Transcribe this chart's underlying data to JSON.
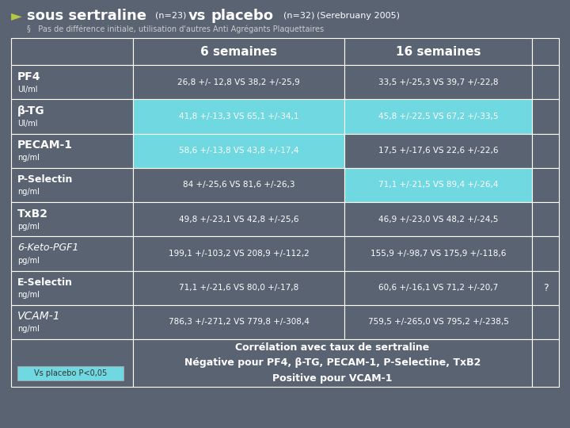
{
  "bg_color": "#5a6372",
  "arrow_color": "#b5c842",
  "text_color": "#ffffff",
  "highlight_color": "#70d8e0",
  "border_color": "#ffffff",
  "subtitle_color": "#cccccc",
  "vs_placebo_text_color": "#333333",
  "col_headers": [
    "6 semaines",
    "16 semaines"
  ],
  "rows": [
    {
      "label": "PF4",
      "sublabel": "UI/ml",
      "italic": false,
      "val_6": "26,8 +/- 12,8 VS 38,2 +/-25,9",
      "val_16": "33,5 +/-25,3 VS 39,7 +/-22,8",
      "highlight_6": false,
      "highlight_16": false,
      "extra": ""
    },
    {
      "label": "β-TG",
      "sublabel": "UI/ml",
      "italic": false,
      "val_6": "41,8 +/-13,3 VS 65,1 +/-34,1",
      "val_16": "45,8 +/-22,5 VS 67,2 +/-33,5",
      "highlight_6": true,
      "highlight_16": true,
      "extra": ""
    },
    {
      "label": "PECAM-1",
      "sublabel": "ng/ml",
      "italic": false,
      "val_6": "58,6 +/-13,8 VS 43,8 +/-17,4",
      "val_16": "17,5 +/-17,6 VS 22,6 +/-22,6",
      "highlight_6": true,
      "highlight_16": false,
      "extra": ""
    },
    {
      "label": "P-Selectin",
      "sublabel": "ng/ml",
      "italic": false,
      "val_6": "84 +/-25,6 VS 81,6 +/-26,3",
      "val_16": "71,1 +/-21,5 VS 89,4 +/-26,4",
      "highlight_6": false,
      "highlight_16": true,
      "extra": ""
    },
    {
      "label": "TxB2",
      "sublabel": "pg/ml",
      "italic": false,
      "val_6": "49,8 +/-23,1 VS 42,8 +/-25,6",
      "val_16": "46,9 +/-23,0 VS 48,2 +/-24,5",
      "highlight_6": false,
      "highlight_16": false,
      "extra": ""
    },
    {
      "label": "6-Keto-PGF1",
      "sublabel": "pg/ml",
      "italic": true,
      "val_6": "199,1 +/-103,2 VS 208,9 +/-112,2",
      "val_16": "155,9 +/-98,7 VS 175,9 +/-118,6",
      "highlight_6": false,
      "highlight_16": false,
      "extra": ""
    },
    {
      "label": "E-Selectin",
      "sublabel": "ng/ml",
      "italic": false,
      "val_6": "71,1 +/-21,6 VS 80,0 +/-17,8",
      "val_16": "60,6 +/-16,1 VS 71,2 +/-20,7",
      "highlight_6": false,
      "highlight_16": false,
      "extra": "?"
    },
    {
      "label": "VCAM-1",
      "sublabel": "ng/ml",
      "italic": true,
      "val_6": "786,3 +/-271,2 VS 779,8 +/-308,4",
      "val_16": "759,5 +/-265,0 VS 795,2 +/-238,5",
      "highlight_6": false,
      "highlight_16": false,
      "extra": ""
    }
  ],
  "bottom_left_label": "Vs placebo P<0,05",
  "bottom_box_lines": [
    "Corrélation avec taux de sertraline",
    "Négative pour PF4, β-TG, PECAM-1, P-Selectine, TxB2",
    "Positive pour VCAM-1"
  ],
  "subtitle": "Pas de différence initiale, utilisation d'autres Anti Agrégants Plaquettaires"
}
